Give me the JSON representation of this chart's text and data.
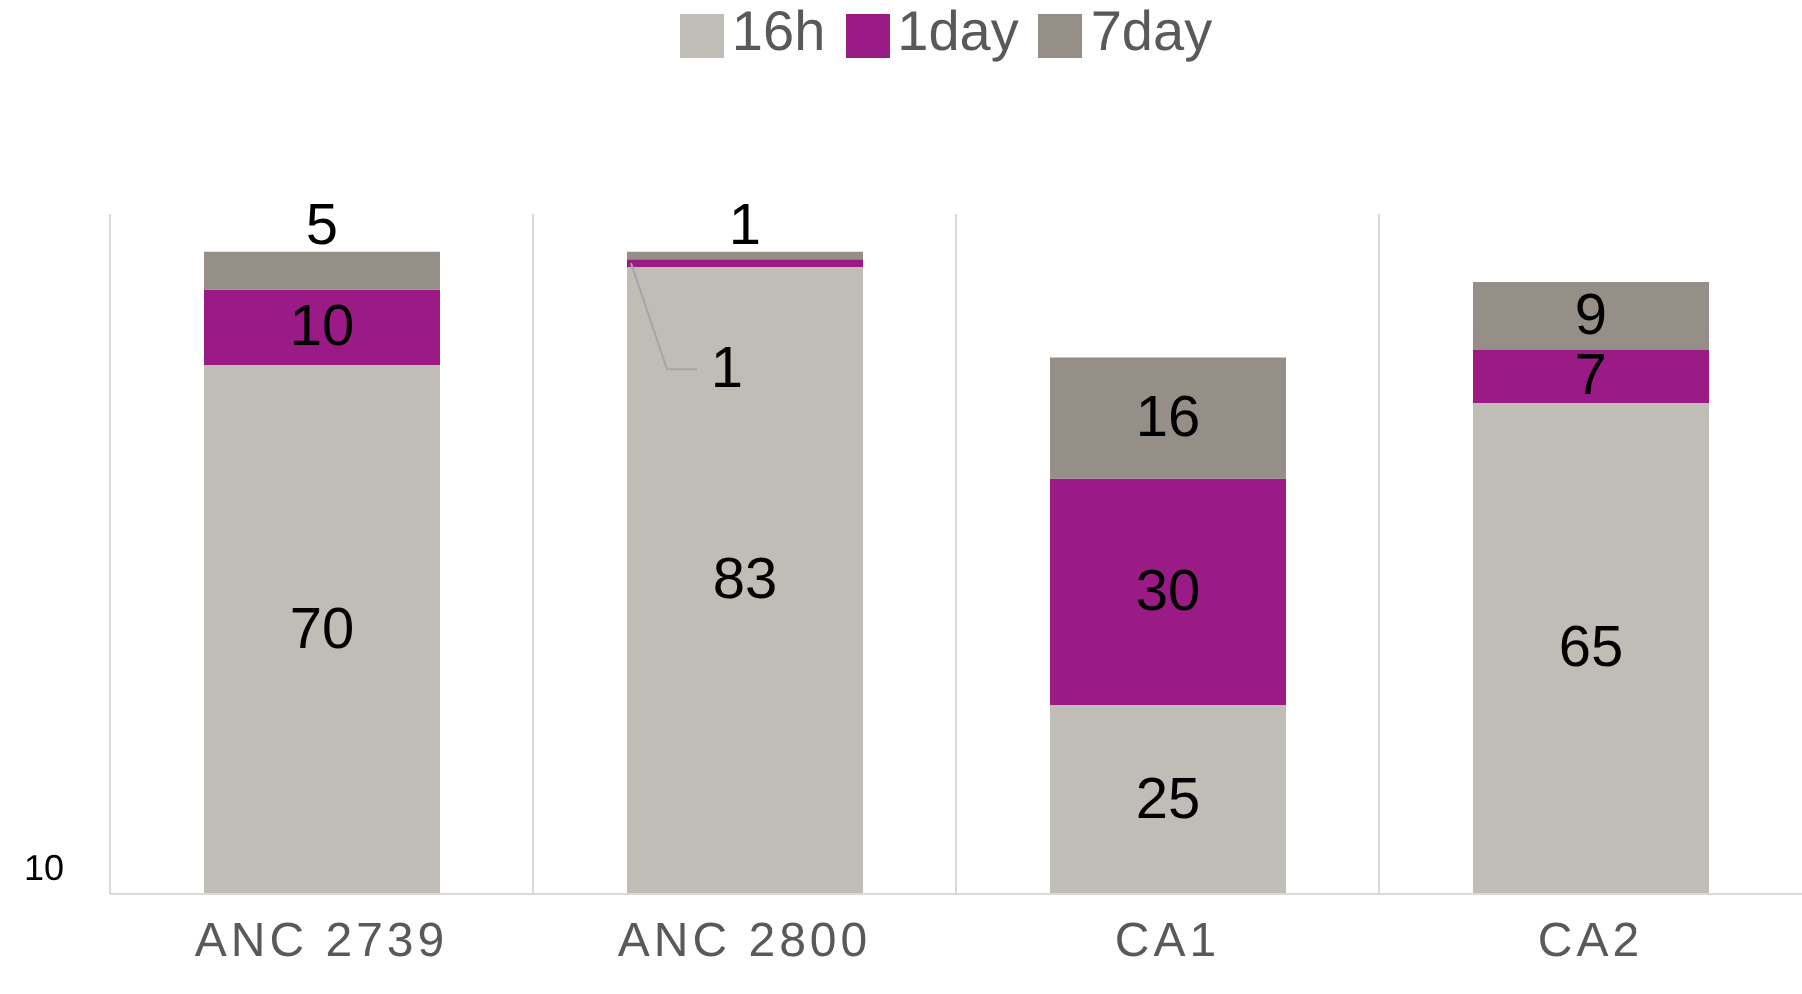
{
  "chart_data": {
    "type": "bar",
    "stacked": true,
    "categories": [
      "ANC 2739",
      "ANC 2800",
      "CA1",
      "CA2"
    ],
    "series": [
      {
        "name": "16h",
        "color": "#c0bcb6",
        "values": [
          70,
          83,
          25,
          65
        ]
      },
      {
        "name": "1day",
        "color": "#9b1b86",
        "values": [
          10,
          1,
          30,
          7
        ]
      },
      {
        "name": "7day",
        "color": "#968f87",
        "values": [
          5,
          1,
          16,
          9
        ]
      }
    ],
    "ylim": [
      0,
      90
    ],
    "tick_labels": "x",
    "grid": "x",
    "legend": "top",
    "data_labels": true,
    "annotations": [
      "10"
    ]
  }
}
